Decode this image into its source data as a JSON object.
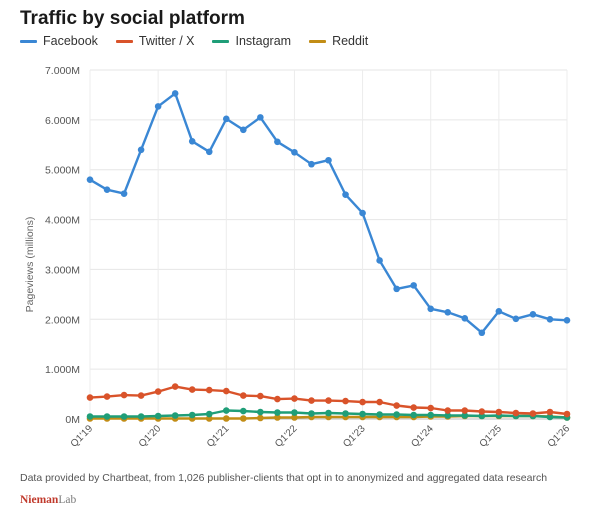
{
  "chart_data": {
    "type": "line",
    "title": "Traffic by social platform",
    "ylabel": "Pageviews (millions)",
    "xlabel": "",
    "ylim": [
      0,
      7000000
    ],
    "y_ticks": [
      {
        "value": 0,
        "label": "0M"
      },
      {
        "value": 1000000,
        "label": "1.000M"
      },
      {
        "value": 2000000,
        "label": "2.000M"
      },
      {
        "value": 3000000,
        "label": "3.000M"
      },
      {
        "value": 4000000,
        "label": "4.000M"
      },
      {
        "value": 5000000,
        "label": "5.000M"
      },
      {
        "value": 6000000,
        "label": "6.000M"
      },
      {
        "value": 7000000,
        "label": "7.000M"
      }
    ],
    "x": [
      "Q1'19",
      "Q2'19",
      "Q3'19",
      "Q4'19",
      "Q1'20",
      "Q2'20",
      "Q3'20",
      "Q4'20",
      "Q1'21",
      "Q2'21",
      "Q3'21",
      "Q4'21",
      "Q1'22",
      "Q2'22",
      "Q3'22",
      "Q4'22",
      "Q1'23",
      "Q2'23",
      "Q3'23",
      "Q4'23",
      "Q1'24",
      "Q2'24",
      "Q3'24",
      "Q4'24",
      "Q1'25",
      "Q2'25",
      "Q3'25",
      "Q4'25",
      "Q1'26"
    ],
    "x_tick_labels": [
      "Q1'19",
      "Q1'20",
      "Q1'21",
      "Q1'22",
      "Q1'23",
      "Q1'24",
      "Q1'25",
      "Q1'26"
    ],
    "grid": true,
    "legend_position": "top-left",
    "series": [
      {
        "name": "Facebook",
        "color": "#3a87d4",
        "values": [
          4800000,
          4600000,
          4520000,
          5400000,
          6270000,
          6530000,
          5570000,
          5360000,
          6020000,
          5800000,
          6050000,
          5560000,
          5350000,
          5110000,
          5190000,
          4500000,
          4130000,
          3180000,
          2610000,
          2680000,
          2210000,
          2140000,
          2020000,
          1730000,
          2160000,
          2010000,
          2100000,
          2000000,
          1980000
        ]
      },
      {
        "name": "Twitter / X",
        "color": "#d9532a",
        "values": [
          430000,
          450000,
          480000,
          470000,
          550000,
          650000,
          590000,
          580000,
          560000,
          470000,
          460000,
          400000,
          410000,
          370000,
          370000,
          360000,
          340000,
          340000,
          270000,
          230000,
          220000,
          170000,
          170000,
          150000,
          140000,
          120000,
          110000,
          140000,
          100000
        ]
      },
      {
        "name": "Instagram",
        "color": "#1f9e78",
        "values": [
          50000,
          50000,
          50000,
          50000,
          60000,
          70000,
          80000,
          100000,
          170000,
          160000,
          140000,
          130000,
          130000,
          110000,
          120000,
          110000,
          100000,
          90000,
          90000,
          80000,
          80000,
          70000,
          70000,
          60000,
          70000,
          60000,
          60000,
          40000,
          30000
        ]
      },
      {
        "name": "Reddit",
        "color": "#c28d16",
        "values": [
          10000,
          10000,
          10000,
          10000,
          10000,
          10000,
          10000,
          10000,
          10000,
          10000,
          20000,
          30000,
          30000,
          40000,
          40000,
          40000,
          40000,
          40000,
          40000,
          40000,
          50000,
          50000,
          60000,
          60000,
          60000,
          60000,
          60000,
          50000,
          30000
        ]
      }
    ]
  },
  "footer": {
    "note": "Data provided by Chartbeat, from 1,026 publisher-clients that opt in to anonymized and aggregated data research",
    "brand_main": "Nieman",
    "brand_sub": "Lab"
  }
}
